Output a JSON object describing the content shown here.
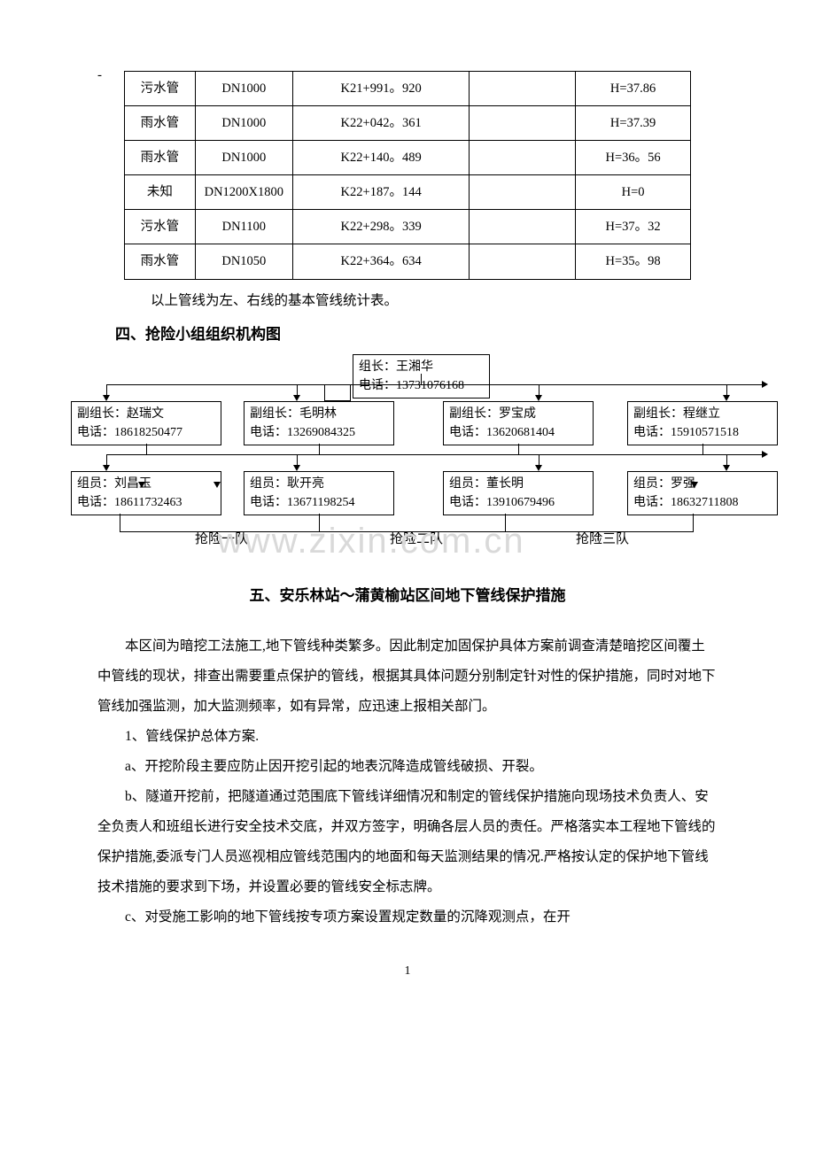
{
  "dash": "-",
  "pipes_table": {
    "rows": [
      [
        "污水管",
        "DN1000",
        "K21+991。920",
        "",
        "H=37.86"
      ],
      [
        "雨水管",
        "DN1000",
        "K22+042。361",
        "",
        "H=37.39"
      ],
      [
        "雨水管",
        "DN1000",
        "K22+140。489",
        "",
        "H=36。56"
      ],
      [
        "未知",
        "DN1200X1800",
        "K22+187。144",
        "",
        "H=0"
      ],
      [
        "污水管",
        "DN1100",
        "K22+298。339",
        "",
        "H=37。32"
      ],
      [
        "雨水管",
        "DN1050",
        "K22+364。634",
        "",
        "H=35。98"
      ]
    ]
  },
  "caption": "以上管线为左、右线的基本管线统计表。",
  "section4_title": "四、抢险小组组织机构图",
  "org": {
    "leader": {
      "l1": "组长：王湘华",
      "l2": "电话：13731076168"
    },
    "deputies": [
      {
        "l1": "副组长：赵瑞文",
        "l2": "电话：18618250477"
      },
      {
        "l1": "副组长：毛明林",
        "l2": "电话：13269084325"
      },
      {
        "l1": "副组长：罗宝成",
        "l2": "电话：13620681404"
      },
      {
        "l1": "副组长：程继立",
        "l2": "电话：15910571518"
      }
    ],
    "members": [
      {
        "l1": "组员：刘昌玉",
        "l2": "电话：18611732463"
      },
      {
        "l1": "组员：耿开亮",
        "l2": "电话：13671198254"
      },
      {
        "l1": "组员：董长明",
        "l2": "电话：13910679496"
      },
      {
        "l1": "组员：罗强",
        "l2": "电话：18632711808"
      }
    ],
    "teams": [
      "抢险一队",
      "抢险二队",
      "抢险三队"
    ]
  },
  "watermark": "www.zixin.com.cn",
  "section5_title": "五、安乐林站～蒲黄榆站区间地下管线保护措施",
  "body": [
    "本区间为暗挖工法施工,地下管线种类繁多。因此制定加固保护具体方案前调查清楚暗挖区间覆土中管线的现状，排查出需要重点保护的管线，根据其具体问题分别制定针对性的保护措施，同时对地下管线加强监测，加大监测频率，如有异常，应迅速上报相关部门。",
    "1、管线保护总体方案.",
    "a、开挖阶段主要应防止因开挖引起的地表沉降造成管线破损、开裂。",
    "b、隧道开挖前，把隧道通过范围底下管线详细情况和制定的管线保护措施向现场技术负责人、安全负责人和班组长进行安全技术交底，并双方签字，明确各层人员的责任。严格落实本工程地下管线的保护措施,委派专门人员巡视相应管线范围内的地面和每天监测结果的情况.严格按认定的保护地下管线技术措施的要求到下场，并设置必要的管线安全标志牌。",
    "c、对受施工影响的地下管线按专项方案设置规定数量的沉降观测点，在开"
  ],
  "page_num": "1"
}
